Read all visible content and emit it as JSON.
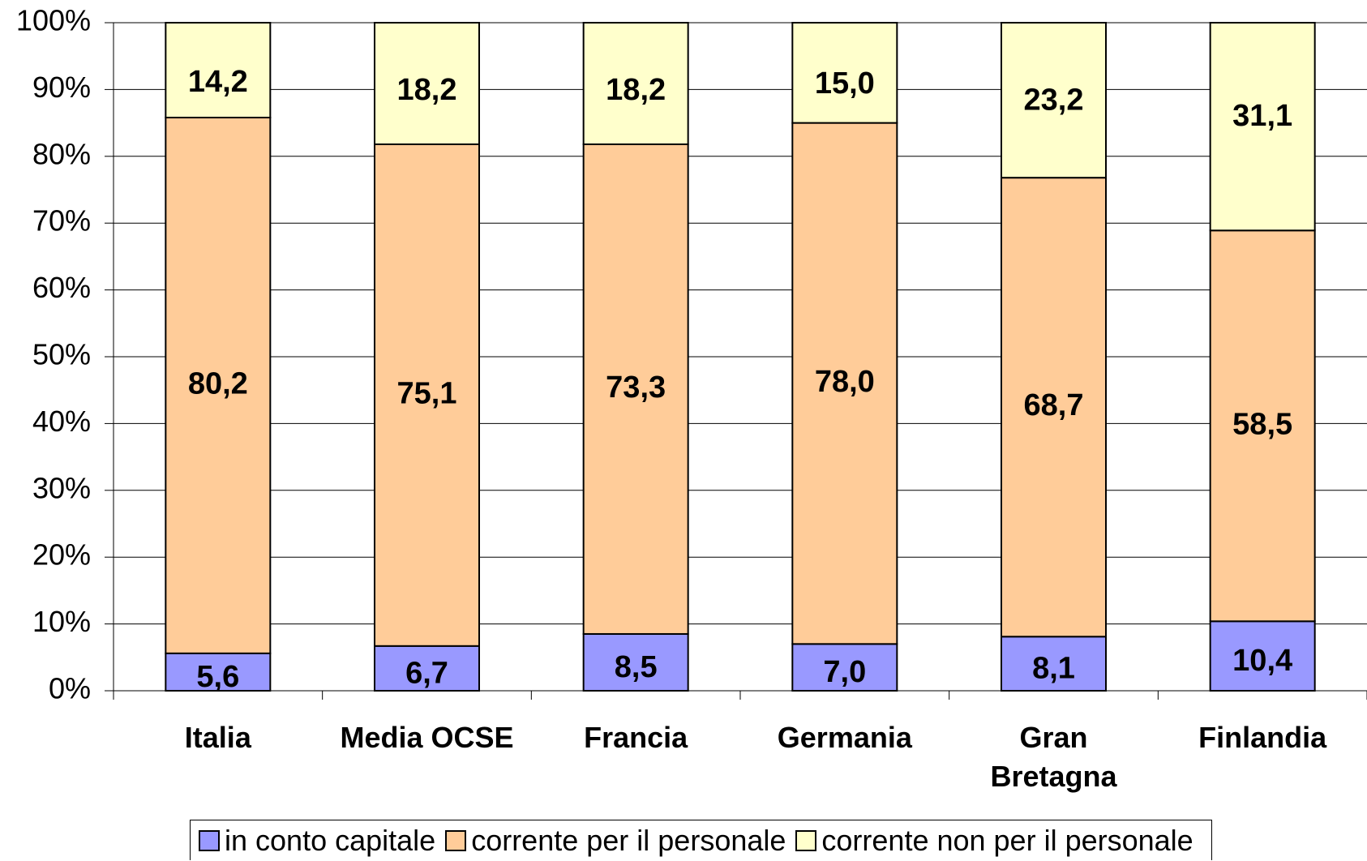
{
  "chart_data": {
    "type": "stacked_bar",
    "categories": [
      "Italia",
      "Media OCSE",
      "Francia",
      "Germania",
      "Gran Bretagna",
      "Finlandia"
    ],
    "series": [
      {
        "name": "in conto capitale",
        "color": "#9999ff",
        "values": [
          5.6,
          6.7,
          8.5,
          7.0,
          8.1,
          10.4
        ],
        "value_labels": [
          "5,6",
          "6,7",
          "8,5",
          "7,0",
          "8,1",
          "10,4"
        ]
      },
      {
        "name": "corrente per il personale",
        "color": "#ffcc99",
        "values": [
          80.2,
          75.1,
          73.3,
          78.0,
          68.7,
          58.5
        ],
        "value_labels": [
          "80,2",
          "75,1",
          "73,3",
          "78,0",
          "68,7",
          "58,5"
        ]
      },
      {
        "name": "corrente non per il personale",
        "color": "#ffffcc",
        "values": [
          14.2,
          18.2,
          18.2,
          15.0,
          23.2,
          31.1
        ],
        "value_labels": [
          "14,2",
          "18,2",
          "18,2",
          "15,0",
          "23,2",
          "31,1"
        ]
      }
    ],
    "ylim": [
      0,
      100
    ],
    "yticks": [
      {
        "value": 0,
        "label": "0%"
      },
      {
        "value": 10,
        "label": "10%"
      },
      {
        "value": 20,
        "label": "20%"
      },
      {
        "value": 30,
        "label": "30%"
      },
      {
        "value": 40,
        "label": "40%"
      },
      {
        "value": 50,
        "label": "50%"
      },
      {
        "value": 60,
        "label": "60%"
      },
      {
        "value": 70,
        "label": "70%"
      },
      {
        "value": 80,
        "label": "80%"
      },
      {
        "value": 90,
        "label": "90%"
      },
      {
        "value": 100,
        "label": "100%"
      }
    ],
    "grid": true,
    "legend": "bottom"
  }
}
